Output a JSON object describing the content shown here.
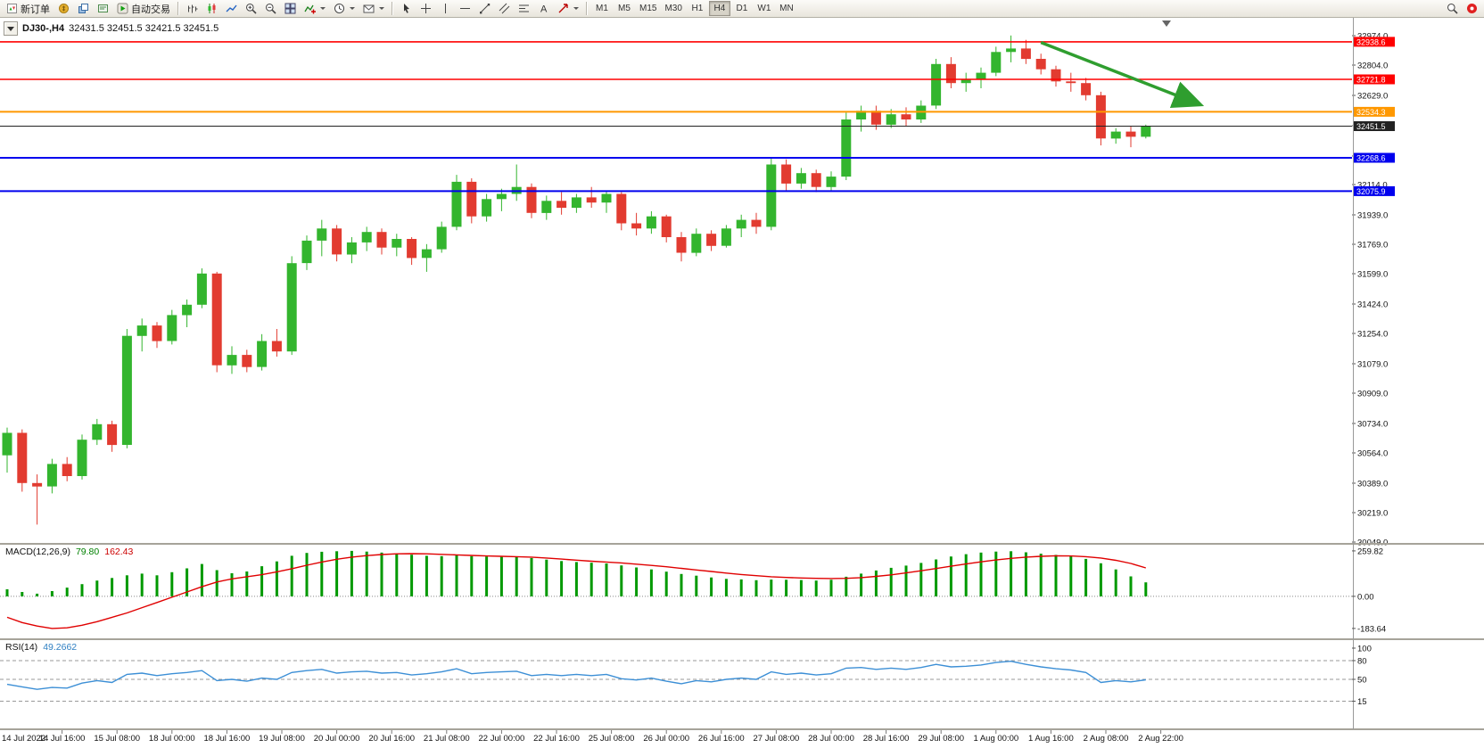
{
  "toolbar": {
    "new_order": "新订单",
    "autotrade": "自动交易",
    "timeframes": [
      "M1",
      "M5",
      "M15",
      "M30",
      "H1",
      "H4",
      "D1",
      "W1",
      "MN"
    ],
    "active_timeframe": "H4",
    "icon_names": [
      "new-order",
      "market-watch",
      "profiles",
      "terminal",
      "autotrade",
      "bar-chart",
      "candlestick-chart",
      "line-chart",
      "zoom-in",
      "zoom-out",
      "tile-windows",
      "indicators",
      "periods",
      "templates",
      "cursor",
      "crosshair",
      "vertical-line",
      "horizontal-line",
      "trendline",
      "equidistant-channel",
      "fibonacci",
      "text",
      "arrows",
      "search",
      "notification"
    ]
  },
  "chart_header": {
    "symbol_period": "DJ30-,H4",
    "ohlc": "32431.5 32451.5 32421.5 32451.5"
  },
  "colors": {
    "up": "#33b52e",
    "down": "#e23b30",
    "macd_hist": "#009900",
    "macd_signal": "#e00000",
    "rsi_line": "#3c8fd6",
    "line_red": "#ff0000",
    "line_orange": "#ff9800",
    "line_blue": "#0000ee",
    "bid_line": "#222222",
    "arrow": "#2f9e2f"
  },
  "chart_data": [
    {
      "type": "candlestick",
      "symbol": "DJ30-",
      "period": "H4",
      "ohlc_current": {
        "open": "32431.5",
        "high": "32451.5",
        "low": "32421.5",
        "close": "32451.5"
      },
      "y_ticks": [
        "32974.0",
        "32804.0",
        "32629.0",
        "32454.0",
        "32279.0",
        "32114.0",
        "31939.0",
        "31769.0",
        "31599.0",
        "31424.0",
        "31254.0",
        "31079.0",
        "30909.0",
        "30734.0",
        "30564.0",
        "30389.0",
        "30219.0",
        "30049.0"
      ],
      "x_labels": [
        "14 Jul 2022",
        "14 Jul 16:00",
        "15 Jul 08:00",
        "18 Jul 00:00",
        "18 Jul 16:00",
        "19 Jul 08:00",
        "20 Jul 00:00",
        "20 Jul 16:00",
        "21 Jul 08:00",
        "22 Jul 00:00",
        "22 Jul 16:00",
        "25 Jul 08:00",
        "26 Jul 00:00",
        "26 Jul 16:00",
        "27 Jul 08:00",
        "28 Jul 00:00",
        "28 Jul 16:00",
        "29 Jul 08:00",
        "1 Aug 00:00",
        "1 Aug 16:00",
        "2 Aug 08:00",
        "2 Aug 22:00"
      ],
      "price_lines": [
        {
          "price": 32938.6,
          "label": "32938.6",
          "color": "#ff0000",
          "width": 1.6
        },
        {
          "price": 32721.8,
          "label": "32721.8",
          "color": "#ff0000",
          "width": 1.6
        },
        {
          "price": 32534.3,
          "label": "32534.3",
          "color": "#ff9800",
          "width": 2
        },
        {
          "price": 32451.5,
          "label": "32451.5",
          "color": "#222222",
          "width": 1
        },
        {
          "price": 32268.6,
          "label": "32268.6",
          "color": "#0000ee",
          "width": 2
        },
        {
          "price": 32075.9,
          "label": "32075.9",
          "color": "#0000ee",
          "width": 2
        }
      ],
      "trend_arrow": {
        "from": {
          "bar": 69,
          "price": 32935
        },
        "to": {
          "bar": 79.5,
          "price": 32580
        }
      },
      "candles": [
        [
          30550,
          30710,
          30450,
          30680
        ],
        [
          30680,
          30700,
          30340,
          30390
        ],
        [
          30390,
          30440,
          30150,
          30370
        ],
        [
          30370,
          30530,
          30330,
          30500
        ],
        [
          30500,
          30540,
          30400,
          30430
        ],
        [
          30430,
          30670,
          30410,
          30640
        ],
        [
          30640,
          30760,
          30610,
          30730
        ],
        [
          30730,
          30750,
          30570,
          30610
        ],
        [
          30610,
          31280,
          30590,
          31240
        ],
        [
          31240,
          31340,
          31150,
          31300
        ],
        [
          31300,
          31320,
          31170,
          31210
        ],
        [
          31210,
          31390,
          31190,
          31360
        ],
        [
          31360,
          31450,
          31290,
          31420
        ],
        [
          31420,
          31630,
          31400,
          31600
        ],
        [
          31600,
          31610,
          31030,
          31070
        ],
        [
          31070,
          31180,
          31020,
          31130
        ],
        [
          31130,
          31160,
          31030,
          31060
        ],
        [
          31060,
          31250,
          31040,
          31210
        ],
        [
          31210,
          31280,
          31120,
          31150
        ],
        [
          31150,
          31700,
          31130,
          31660
        ],
        [
          31660,
          31820,
          31620,
          31790
        ],
        [
          31790,
          31910,
          31700,
          31860
        ],
        [
          31860,
          31880,
          31670,
          31710
        ],
        [
          31710,
          31810,
          31660,
          31780
        ],
        [
          31780,
          31870,
          31730,
          31840
        ],
        [
          31840,
          31860,
          31710,
          31750
        ],
        [
          31750,
          31830,
          31700,
          31800
        ],
        [
          31800,
          31810,
          31650,
          31690
        ],
        [
          31690,
          31770,
          31610,
          31740
        ],
        [
          31740,
          31900,
          31720,
          31870
        ],
        [
          31870,
          32170,
          31850,
          32130
        ],
        [
          32130,
          32150,
          31890,
          31930
        ],
        [
          31930,
          32060,
          31900,
          32030
        ],
        [
          32030,
          32090,
          31960,
          32060
        ],
        [
          32060,
          32230,
          32020,
          32100
        ],
        [
          32100,
          32120,
          31920,
          31950
        ],
        [
          31950,
          32050,
          31910,
          32020
        ],
        [
          32020,
          32070,
          31940,
          31980
        ],
        [
          31980,
          32060,
          31950,
          32040
        ],
        [
          32040,
          32100,
          31980,
          32010
        ],
        [
          32010,
          32080,
          31950,
          32060
        ],
        [
          32060,
          32070,
          31850,
          31890
        ],
        [
          31890,
          31950,
          31820,
          31860
        ],
        [
          31860,
          31960,
          31830,
          31930
        ],
        [
          31930,
          31940,
          31780,
          31810
        ],
        [
          31810,
          31840,
          31670,
          31720
        ],
        [
          31720,
          31860,
          31700,
          31830
        ],
        [
          31830,
          31850,
          31730,
          31760
        ],
        [
          31760,
          31880,
          31750,
          31860
        ],
        [
          31860,
          31940,
          31810,
          31910
        ],
        [
          31910,
          31950,
          31830,
          31870
        ],
        [
          31870,
          32270,
          31850,
          32230
        ],
        [
          32230,
          32260,
          32080,
          32120
        ],
        [
          32120,
          32210,
          32090,
          32180
        ],
        [
          32180,
          32200,
          32070,
          32100
        ],
        [
          32100,
          32190,
          32080,
          32160
        ],
        [
          32160,
          32530,
          32140,
          32490
        ],
        [
          32490,
          32570,
          32420,
          32540
        ],
        [
          32540,
          32570,
          32430,
          32460
        ],
        [
          32460,
          32550,
          32440,
          32520
        ],
        [
          32520,
          32560,
          32450,
          32490
        ],
        [
          32490,
          32600,
          32470,
          32570
        ],
        [
          32570,
          32840,
          32550,
          32810
        ],
        [
          32810,
          32850,
          32670,
          32700
        ],
        [
          32700,
          32760,
          32650,
          32720
        ],
        [
          32720,
          32790,
          32670,
          32760
        ],
        [
          32760,
          32910,
          32740,
          32880
        ],
        [
          32880,
          32975,
          32820,
          32900
        ],
        [
          32900,
          32950,
          32810,
          32840
        ],
        [
          32840,
          32870,
          32750,
          32780
        ],
        [
          32780,
          32800,
          32680,
          32710
        ],
        [
          32710,
          32760,
          32650,
          32700
        ],
        [
          32700,
          32730,
          32600,
          32630
        ],
        [
          32630,
          32650,
          32340,
          32380
        ],
        [
          32380,
          32440,
          32350,
          32420
        ],
        [
          32420,
          32450,
          32330,
          32390
        ],
        [
          32390,
          32460,
          32380,
          32451.5
        ]
      ]
    },
    {
      "type": "macd",
      "title": "MACD(12,26,9)",
      "params": [
        12,
        26,
        9
      ],
      "current_macd": "79.80",
      "current_signal": "162.43",
      "y_ticks": [
        "259.82",
        "0.00",
        "-183.64"
      ],
      "histogram": [
        40,
        25,
        15,
        30,
        50,
        70,
        90,
        105,
        120,
        130,
        120,
        138,
        160,
        185,
        150,
        132,
        142,
        172,
        200,
        232,
        248,
        255,
        258,
        259.8,
        256,
        250,
        244,
        238,
        232,
        230,
        236,
        230,
        228,
        226,
        228,
        219,
        210,
        202,
        196,
        192,
        188,
        177,
        165,
        154,
        141,
        128,
        118,
        108,
        100,
        97,
        92,
        96,
        95,
        93,
        90,
        95,
        112,
        130,
        148,
        163,
        176,
        191,
        211,
        228,
        241,
        250,
        256,
        258,
        252,
        244,
        237,
        229,
        214,
        189,
        154,
        114,
        79.8
      ],
      "signal": [
        -120,
        -150,
        -170,
        -183.64,
        -180,
        -165,
        -145,
        -120,
        -95,
        -65,
        -35,
        -5,
        25,
        55,
        82,
        100,
        112,
        124,
        140,
        158,
        178,
        196,
        212,
        224,
        233,
        239,
        243,
        244,
        243,
        240,
        237,
        234,
        231,
        229,
        227,
        224,
        219,
        213,
        207,
        201,
        196,
        191,
        184,
        177,
        169,
        160,
        151,
        142,
        133,
        125,
        118,
        112,
        108,
        105,
        103,
        102,
        103,
        107,
        114,
        123,
        134,
        146,
        159,
        172,
        185,
        197,
        208,
        217,
        224,
        229,
        232,
        231,
        227,
        219,
        206,
        188,
        162.43
      ]
    },
    {
      "type": "line",
      "title": "RSI(14)",
      "period": 14,
      "current": "49.2662",
      "y_ticks": [
        "100",
        "80",
        "50",
        "15"
      ],
      "levels": [
        80,
        50,
        15
      ],
      "values": [
        42,
        38,
        34,
        37,
        36,
        44,
        48,
        45,
        58,
        60,
        56,
        59,
        61,
        64,
        48,
        50,
        47,
        52,
        50,
        61,
        64,
        66,
        60,
        62,
        63,
        60,
        61,
        57,
        59,
        62,
        67,
        59,
        61,
        62,
        63,
        56,
        58,
        56,
        58,
        56,
        58,
        51,
        49,
        52,
        47,
        43,
        48,
        46,
        50,
        52,
        50,
        62,
        58,
        60,
        57,
        59,
        68,
        69,
        66,
        68,
        66,
        69,
        74,
        70,
        71,
        73,
        77,
        79,
        74,
        70,
        67,
        65,
        61,
        45,
        48,
        46,
        49.27
      ]
    }
  ]
}
